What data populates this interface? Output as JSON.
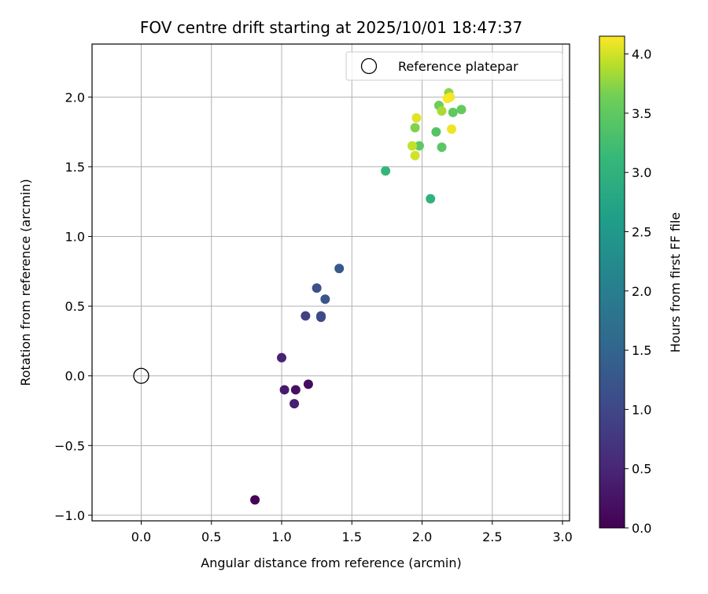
{
  "chart_data": {
    "type": "scatter",
    "title": "FOV centre drift starting at 2025/10/01 18:47:37",
    "xlabel": "Angular distance from reference (arcmin)",
    "ylabel": "Rotation from reference (arcmin)",
    "xlim": [
      -0.35,
      3.05
    ],
    "ylim": [
      -1.04,
      2.38
    ],
    "xticks": [
      0.0,
      0.5,
      1.0,
      1.5,
      2.0,
      2.5,
      3.0
    ],
    "xtick_labels": [
      "0.0",
      "0.5",
      "1.0",
      "1.5",
      "2.0",
      "2.5",
      "3.0"
    ],
    "yticks": [
      -1.0,
      -0.5,
      0.0,
      0.5,
      1.0,
      1.5,
      2.0
    ],
    "ytick_labels": [
      "−1.0",
      "−0.5",
      "0.0",
      "0.5",
      "1.0",
      "1.5",
      "2.0"
    ],
    "grid": true,
    "legend": {
      "placement": "top-right",
      "entries": [
        "Reference platepar"
      ]
    },
    "reference_point": {
      "x": 0.0,
      "y": 0.0,
      "label": "Reference platepar"
    },
    "colorbar": {
      "label": "Hours from first FF file",
      "range": [
        0.0,
        4.15
      ],
      "ticks": [
        0.0,
        0.5,
        1.0,
        1.5,
        2.0,
        2.5,
        3.0,
        3.5,
        4.0
      ],
      "tick_labels": [
        "0.0",
        "0.5",
        "1.0",
        "1.5",
        "2.0",
        "2.5",
        "3.0",
        "3.5",
        "4.0"
      ],
      "colormap": "viridis"
    },
    "series": [
      {
        "name": "FOV centre drift",
        "points": [
          {
            "x": 0.81,
            "y": -0.89,
            "c": 0.05
          },
          {
            "x": 1.19,
            "y": -0.06,
            "c": 0.15
          },
          {
            "x": 1.1,
            "y": -0.1,
            "c": 0.2
          },
          {
            "x": 1.02,
            "y": -0.1,
            "c": 0.35
          },
          {
            "x": 1.09,
            "y": -0.2,
            "c": 0.4
          },
          {
            "x": 1.0,
            "y": 0.13,
            "c": 0.45
          },
          {
            "x": 1.17,
            "y": 0.43,
            "c": 0.9
          },
          {
            "x": 1.28,
            "y": 0.42,
            "c": 1.0
          },
          {
            "x": 1.28,
            "y": 0.43,
            "c": 1.05
          },
          {
            "x": 1.25,
            "y": 0.63,
            "c": 1.15
          },
          {
            "x": 1.31,
            "y": 0.55,
            "c": 1.25
          },
          {
            "x": 1.41,
            "y": 0.77,
            "c": 1.3
          },
          {
            "x": 2.06,
            "y": 1.27,
            "c": 3.0
          },
          {
            "x": 1.74,
            "y": 1.47,
            "c": 3.1
          },
          {
            "x": 2.1,
            "y": 1.75,
            "c": 3.4
          },
          {
            "x": 2.14,
            "y": 1.64,
            "c": 3.45
          },
          {
            "x": 1.98,
            "y": 1.65,
            "c": 3.5
          },
          {
            "x": 2.22,
            "y": 1.89,
            "c": 3.5
          },
          {
            "x": 2.28,
            "y": 1.91,
            "c": 3.55
          },
          {
            "x": 2.12,
            "y": 1.94,
            "c": 3.6
          },
          {
            "x": 1.95,
            "y": 1.78,
            "c": 3.7
          },
          {
            "x": 2.19,
            "y": 2.03,
            "c": 3.75
          },
          {
            "x": 2.14,
            "y": 1.9,
            "c": 3.85
          },
          {
            "x": 1.93,
            "y": 1.65,
            "c": 3.95
          },
          {
            "x": 1.95,
            "y": 1.58,
            "c": 4.0
          },
          {
            "x": 1.96,
            "y": 1.85,
            "c": 4.05
          },
          {
            "x": 2.21,
            "y": 1.77,
            "c": 4.1
          },
          {
            "x": 2.2,
            "y": 2.0,
            "c": 4.12
          },
          {
            "x": 2.18,
            "y": 1.99,
            "c": 4.14
          }
        ]
      }
    ]
  }
}
